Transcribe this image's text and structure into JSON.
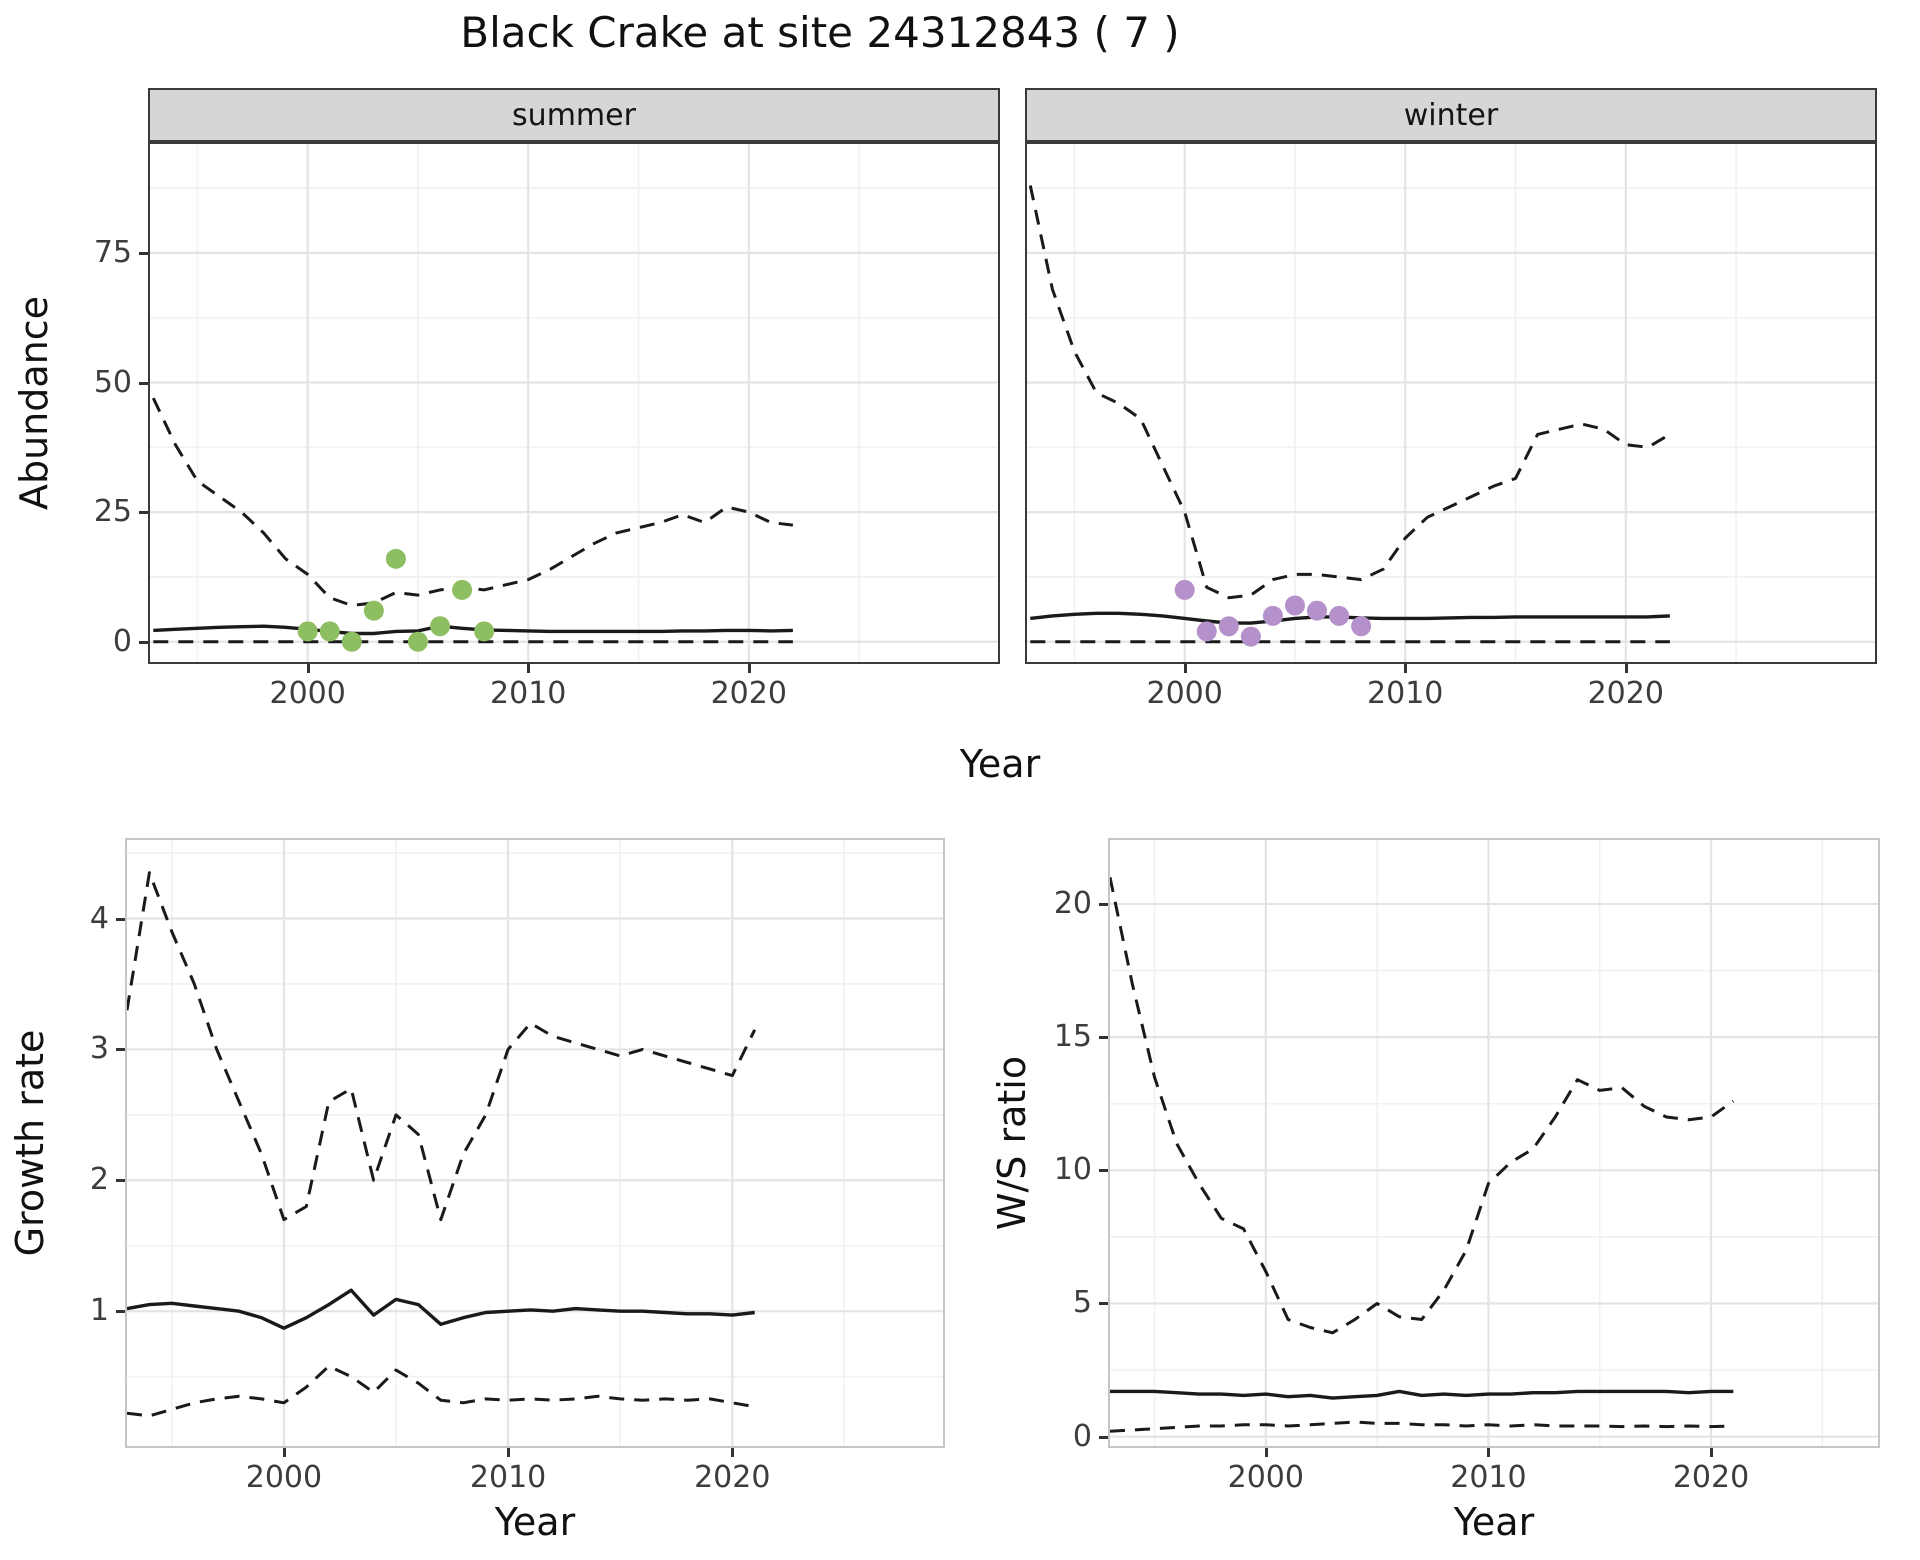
{
  "title": "Black Crake at site 24312843 ( 7 )",
  "colors": {
    "line": "#1a1a1a",
    "grid_major": "#e4e4e4",
    "grid_minor": "#f1f1f1",
    "strip_bg": "#d6d6d6",
    "summer_points": "#8ebe62",
    "winter_points": "#b591cc",
    "tick_text": "#3d3d3d"
  },
  "chart_data": [
    {
      "id": "abundance-summer",
      "type": "line",
      "facet_label": "summer",
      "xlabel": "Year",
      "ylabel": "Abundance",
      "xlim": [
        1992.85,
        2031.3
      ],
      "ylim": [
        -3.9,
        96
      ],
      "xticks": [
        2000,
        2010,
        2020
      ],
      "xminor": [
        1995,
        2005,
        2015,
        2025
      ],
      "yticks": [
        0,
        25,
        50,
        75
      ],
      "yminor": [
        12.5,
        37.5,
        62.5,
        87.5
      ],
      "yticks_visible": true,
      "x": [
        1993,
        1994,
        1995,
        1996,
        1997,
        1998,
        1999,
        2000,
        2001,
        2002,
        2003,
        2004,
        2005,
        2006,
        2007,
        2008,
        2009,
        2010,
        2011,
        2012,
        2013,
        2014,
        2015,
        2016,
        2017,
        2018,
        2019,
        2020,
        2021,
        2022
      ],
      "series": [
        {
          "name": "upper-95ci",
          "style": "dashed",
          "values": [
            47,
            38,
            31,
            28,
            25,
            21,
            16,
            13,
            8.5,
            7,
            7.5,
            9.5,
            9,
            10,
            10.5,
            10,
            11,
            12,
            14,
            16.5,
            19,
            21,
            22,
            23,
            24.5,
            23,
            26,
            25,
            23,
            22.5
          ]
        },
        {
          "name": "median",
          "style": "solid",
          "values": [
            2.2,
            2.4,
            2.6,
            2.8,
            2.9,
            3,
            2.8,
            2.4,
            2,
            1.6,
            1.6,
            2,
            2.1,
            3,
            2.6,
            2.3,
            2.2,
            2.1,
            2,
            2,
            2,
            2,
            2,
            2,
            2.1,
            2.1,
            2.2,
            2.2,
            2.1,
            2.2
          ]
        },
        {
          "name": "lower-95ci",
          "style": "dashed",
          "values": [
            0,
            0,
            0,
            0,
            0,
            0,
            0,
            0,
            0,
            0,
            0,
            0,
            0,
            0,
            0,
            0,
            0,
            0,
            0,
            0,
            0,
            0,
            0,
            0,
            0,
            0,
            0,
            0,
            0,
            0
          ]
        }
      ],
      "points": {
        "name": "observed-summer-counts",
        "color": "#8ebe62",
        "x": [
          2000,
          2001,
          2002,
          2003,
          2004,
          2005,
          2006,
          2007,
          2008
        ],
        "y": [
          2,
          2,
          0,
          6,
          16,
          0,
          3,
          10,
          2
        ]
      }
    },
    {
      "id": "abundance-winter",
      "type": "line",
      "facet_label": "winter",
      "xlabel": "Year",
      "ylabel": "Abundance",
      "xlim": [
        1992.85,
        2031.3
      ],
      "ylim": [
        -3.9,
        96
      ],
      "xticks": [
        2000,
        2010,
        2020
      ],
      "xminor": [
        1995,
        2005,
        2015,
        2025
      ],
      "yticks": [
        0,
        25,
        50,
        75
      ],
      "yminor": [
        12.5,
        37.5,
        62.5,
        87.5
      ],
      "yticks_visible": false,
      "x": [
        1993,
        1994,
        1995,
        1996,
        1997,
        1998,
        1999,
        2000,
        2001,
        2002,
        2003,
        2004,
        2005,
        2006,
        2007,
        2008,
        2009,
        2010,
        2011,
        2012,
        2013,
        2014,
        2015,
        2016,
        2017,
        2018,
        2019,
        2020,
        2021,
        2022
      ],
      "series": [
        {
          "name": "upper-95ci",
          "style": "dashed",
          "values": [
            88,
            68,
            56,
            48,
            46,
            43,
            34,
            25,
            10.5,
            8.5,
            9,
            12,
            13,
            13,
            12.5,
            12,
            14,
            20,
            24,
            26,
            28,
            30,
            31.5,
            40,
            41,
            42,
            41,
            38,
            37.5,
            40
          ]
        },
        {
          "name": "median",
          "style": "solid",
          "values": [
            4.5,
            5,
            5.3,
            5.5,
            5.5,
            5.3,
            5,
            4.5,
            4,
            3.6,
            3.6,
            4,
            4.5,
            4.8,
            4.8,
            4.6,
            4.5,
            4.5,
            4.5,
            4.6,
            4.7,
            4.7,
            4.8,
            4.8,
            4.8,
            4.8,
            4.8,
            4.8,
            4.8,
            5
          ]
        },
        {
          "name": "lower-95ci",
          "style": "dashed",
          "values": [
            0,
            0,
            0,
            0,
            0,
            0,
            0,
            0,
            0,
            0,
            0,
            0,
            0,
            0,
            0,
            0,
            0,
            0,
            0,
            0,
            0,
            0,
            0,
            0,
            0,
            0,
            0,
            0,
            0,
            0
          ]
        }
      ],
      "points": {
        "name": "observed-winter-counts",
        "color": "#b591cc",
        "x": [
          2000,
          2001,
          2002,
          2003,
          2004,
          2005,
          2006,
          2007,
          2008
        ],
        "y": [
          10,
          2,
          3,
          1,
          5,
          7,
          6,
          5,
          3
        ]
      }
    },
    {
      "id": "growth-rate",
      "type": "line",
      "xlabel": "Year",
      "ylabel": "Growth rate",
      "xlim": [
        1993.0,
        2029.4
      ],
      "ylim": [
        -0.03,
        4.6
      ],
      "xticks": [
        2000,
        2010,
        2020
      ],
      "xminor": [
        1995,
        2005,
        2015,
        2025
      ],
      "yticks": [
        1,
        2,
        3,
        4
      ],
      "yminor": [
        0.5,
        1.5,
        2.5,
        3.5,
        4.5
      ],
      "yticks_visible": true,
      "x": [
        1993,
        1994,
        1995,
        1996,
        1997,
        1998,
        1999,
        2000,
        2001,
        2002,
        2003,
        2004,
        2005,
        2006,
        2007,
        2008,
        2009,
        2010,
        2011,
        2012,
        2013,
        2014,
        2015,
        2016,
        2017,
        2018,
        2019,
        2020,
        2021
      ],
      "series": [
        {
          "name": "upper-95ci",
          "style": "dashed",
          "values": [
            3.3,
            4.35,
            3.9,
            3.5,
            3,
            2.6,
            2.2,
            1.7,
            1.8,
            2.6,
            2.7,
            2,
            2.5,
            2.35,
            1.7,
            2.2,
            2.5,
            3,
            3.2,
            3.1,
            3.05,
            3,
            2.95,
            3,
            2.95,
            2.9,
            2.85,
            2.8,
            3.15
          ]
        },
        {
          "name": "median",
          "style": "solid",
          "values": [
            1.02,
            1.05,
            1.06,
            1.04,
            1.02,
            1,
            0.95,
            0.87,
            0.95,
            1.05,
            1.16,
            0.97,
            1.09,
            1.05,
            0.9,
            0.95,
            0.99,
            1,
            1.01,
            1,
            1.02,
            1.01,
            1,
            1,
            0.99,
            0.98,
            0.98,
            0.97,
            0.99
          ]
        },
        {
          "name": "lower-95ci",
          "style": "dashed",
          "values": [
            0.22,
            0.2,
            0.25,
            0.3,
            0.33,
            0.35,
            0.33,
            0.3,
            0.42,
            0.58,
            0.5,
            0.38,
            0.55,
            0.45,
            0.32,
            0.3,
            0.33,
            0.32,
            0.33,
            0.32,
            0.33,
            0.35,
            0.33,
            0.32,
            0.33,
            0.32,
            0.33,
            0.3,
            0.27
          ]
        }
      ]
    },
    {
      "id": "ws-ratio",
      "type": "line",
      "xlabel": "Year",
      "ylabel": "W/S ratio",
      "xlim": [
        1993.0,
        2027.5
      ],
      "ylim": [
        -0.35,
        22.4
      ],
      "xticks": [
        2000,
        2010,
        2020
      ],
      "xminor": [
        1995,
        2005,
        2015,
        2025
      ],
      "yticks": [
        0,
        5,
        10,
        15,
        20
      ],
      "yminor": [
        2.5,
        7.5,
        12.5,
        17.5
      ],
      "yticks_visible": true,
      "x": [
        1993,
        1994,
        1995,
        1996,
        1997,
        1998,
        1999,
        2000,
        2001,
        2002,
        2003,
        2004,
        2005,
        2006,
        2007,
        2008,
        2009,
        2010,
        2011,
        2012,
        2013,
        2014,
        2015,
        2016,
        2017,
        2018,
        2019,
        2020,
        2021
      ],
      "series": [
        {
          "name": "upper-95ci",
          "style": "dashed",
          "values": [
            21,
            17,
            13.5,
            11,
            9.5,
            8.2,
            7.8,
            6.2,
            4.4,
            4.1,
            3.9,
            4.4,
            5,
            4.5,
            4.4,
            5.5,
            7,
            9.5,
            10.3,
            10.8,
            12,
            13.4,
            13,
            13.1,
            12.4,
            12,
            11.9,
            12,
            12.6
          ]
        },
        {
          "name": "median",
          "style": "solid",
          "values": [
            1.7,
            1.7,
            1.7,
            1.65,
            1.6,
            1.6,
            1.55,
            1.6,
            1.5,
            1.55,
            1.45,
            1.5,
            1.55,
            1.7,
            1.55,
            1.6,
            1.55,
            1.6,
            1.6,
            1.65,
            1.65,
            1.7,
            1.7,
            1.7,
            1.7,
            1.7,
            1.65,
            1.7,
            1.7
          ]
        },
        {
          "name": "lower-95ci",
          "style": "dashed",
          "values": [
            0.2,
            0.25,
            0.3,
            0.35,
            0.4,
            0.4,
            0.45,
            0.45,
            0.4,
            0.45,
            0.5,
            0.55,
            0.5,
            0.5,
            0.45,
            0.45,
            0.4,
            0.45,
            0.4,
            0.45,
            0.4,
            0.4,
            0.4,
            0.38,
            0.4,
            0.38,
            0.4,
            0.38,
            0.4
          ]
        }
      ]
    }
  ]
}
